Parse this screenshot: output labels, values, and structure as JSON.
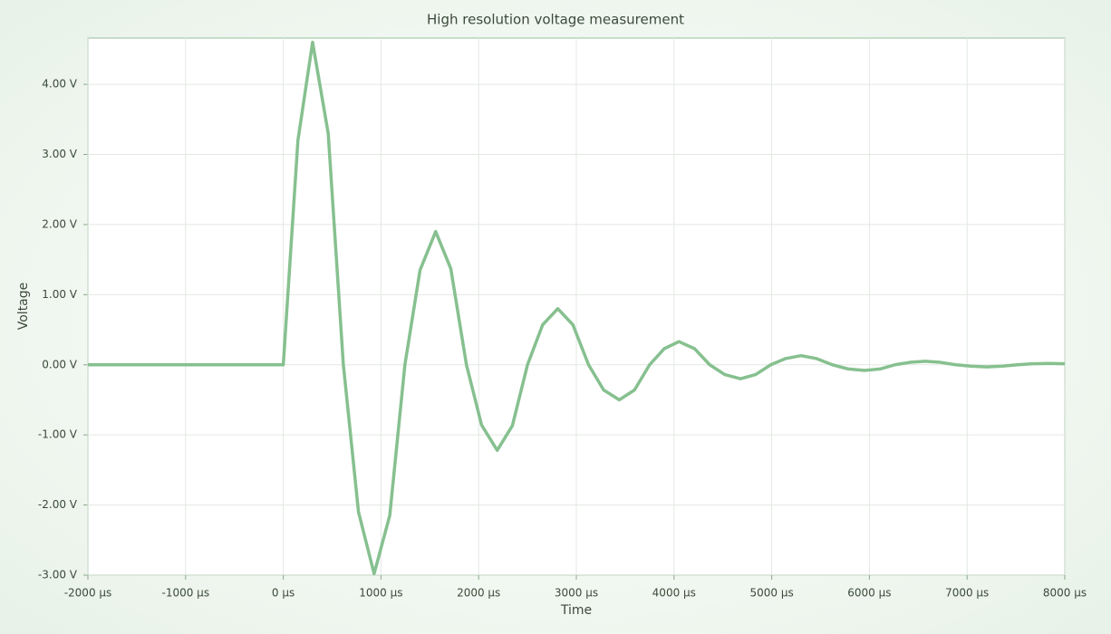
{
  "chart_data": {
    "type": "line",
    "title": "High resolution voltage measurement",
    "x_label": "Time",
    "y_label": "Voltage",
    "x": [
      -2000,
      0,
      150,
      300,
      460,
      615,
      770,
      930,
      1090,
      1245,
      1400,
      1560,
      1715,
      1875,
      2030,
      2190,
      2345,
      2500,
      2655,
      2810,
      2965,
      3125,
      3280,
      3440,
      3595,
      3750,
      3900,
      4050,
      4210,
      4365,
      4520,
      4680,
      4835,
      4990,
      5145,
      5300,
      5455,
      5620,
      5785,
      5950,
      6110,
      6260,
      6415,
      6570,
      6725,
      6885,
      7040,
      7200,
      7360,
      7515,
      7670,
      7830,
      8000
    ],
    "series": [
      {
        "name": "Voltage",
        "color": "#86c08f",
        "values": [
          0,
          0,
          3.2,
          4.6,
          3.3,
          0,
          -2.1,
          -2.98,
          -2.15,
          0,
          1.35,
          1.9,
          1.37,
          0,
          -0.86,
          -1.22,
          -0.87,
          0,
          0.57,
          0.8,
          0.57,
          0,
          -0.36,
          -0.5,
          -0.36,
          0,
          0.23,
          0.33,
          0.23,
          0,
          -0.14,
          -0.2,
          -0.14,
          0,
          0.09,
          0.13,
          0.09,
          0,
          -0.06,
          -0.08,
          -0.06,
          0,
          0.035,
          0.05,
          0.035,
          0,
          -0.02,
          -0.03,
          -0.02,
          0,
          0.014,
          0.02,
          0.015
        ]
      }
    ],
    "xlim": [
      -2000,
      8000
    ],
    "xticks": [
      {
        "value": -2000,
        "label": "-2000 µs"
      },
      {
        "value": -1000,
        "label": "-1000 µs"
      },
      {
        "value": 0,
        "label": "0 µs"
      },
      {
        "value": 1000,
        "label": "1000 µs"
      },
      {
        "value": 2000,
        "label": "2000 µs"
      },
      {
        "value": 3000,
        "label": "3000 µs"
      },
      {
        "value": 4000,
        "label": "4000 µs"
      },
      {
        "value": 5000,
        "label": "5000 µs"
      },
      {
        "value": 6000,
        "label": "6000 µs"
      },
      {
        "value": 7000,
        "label": "7000 µs"
      },
      {
        "value": 8000,
        "label": "8000 µs"
      }
    ],
    "ylim": [
      -3,
      4.66
    ],
    "yticks": [
      {
        "value": -3,
        "label": "-3.00 V"
      },
      {
        "value": -2,
        "label": "-2.00 V"
      },
      {
        "value": -1,
        "label": "-1.00 V"
      },
      {
        "value": 0,
        "label": "0.00 V"
      },
      {
        "value": 1,
        "label": "1.00 V"
      },
      {
        "value": 2,
        "label": "2.00 V"
      },
      {
        "value": 3,
        "label": "3.00 V"
      },
      {
        "value": 4,
        "label": "4.00 V"
      }
    ],
    "grid": true
  }
}
